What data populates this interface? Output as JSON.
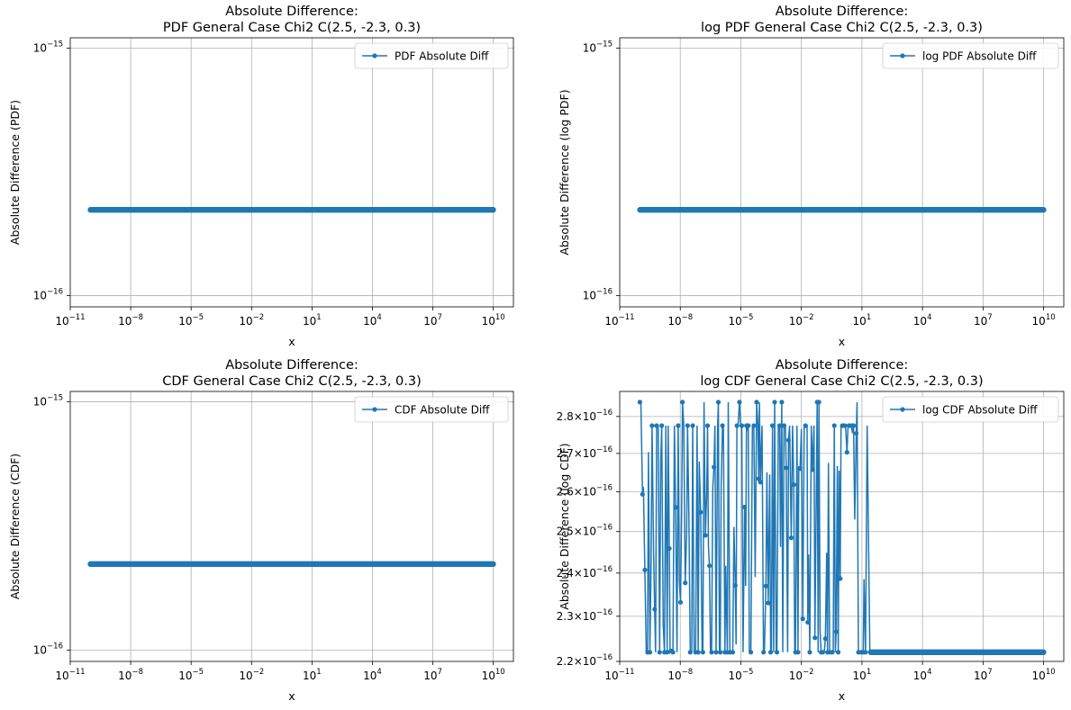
{
  "chart_data": [
    {
      "type": "line",
      "title": "Absolute Difference:\nPDF General Case Chi2 C(2.5, -2.3, 0.3)",
      "xlabel": "x",
      "ylabel": "Absolute Difference (PDF)",
      "xscale": "log",
      "yscale": "log",
      "xlim": [
        1e-11,
        100000000000.0
      ],
      "ylim": [
        9e-17,
        1.1e-15
      ],
      "xticks": [
        {
          "v": 1e-11,
          "base": "10",
          "exp": "−11"
        },
        {
          "v": 1e-08,
          "base": "10",
          "exp": "−8"
        },
        {
          "v": 1e-05,
          "base": "10",
          "exp": "−5"
        },
        {
          "v": 0.01,
          "base": "10",
          "exp": "−2"
        },
        {
          "v": 10.0,
          "base": "10",
          "exp": "1"
        },
        {
          "v": 10000.0,
          "base": "10",
          "exp": "4"
        },
        {
          "v": 10000000.0,
          "base": "10",
          "exp": "7"
        },
        {
          "v": 10000000000.0,
          "base": "10",
          "exp": "10"
        }
      ],
      "yticks": [
        {
          "v": 1e-16,
          "base": "10",
          "exp": "−16"
        },
        {
          "v": 1e-15,
          "base": "10",
          "exp": "−15"
        }
      ],
      "grid": true,
      "legend": "upper right",
      "color": "#1f77b4",
      "series": [
        {
          "name": "PDF Absolute Diff",
          "x_range": [
            1e-10,
            10000000000.0
          ],
          "y": 2.22e-16,
          "pattern": "constant"
        }
      ]
    },
    {
      "type": "line",
      "title": "Absolute Difference:\nlog PDF General Case Chi2 C(2.5, -2.3, 0.3)",
      "xlabel": "x",
      "ylabel": "Absolute Difference (log PDF)",
      "xscale": "log",
      "yscale": "log",
      "xlim": [
        1e-11,
        100000000000.0
      ],
      "ylim": [
        9e-17,
        1.1e-15
      ],
      "xticks": [
        {
          "v": 1e-11,
          "base": "10",
          "exp": "−11"
        },
        {
          "v": 1e-08,
          "base": "10",
          "exp": "−8"
        },
        {
          "v": 1e-05,
          "base": "10",
          "exp": "−5"
        },
        {
          "v": 0.01,
          "base": "10",
          "exp": "−2"
        },
        {
          "v": 10.0,
          "base": "10",
          "exp": "1"
        },
        {
          "v": 10000.0,
          "base": "10",
          "exp": "4"
        },
        {
          "v": 10000000.0,
          "base": "10",
          "exp": "7"
        },
        {
          "v": 10000000000.0,
          "base": "10",
          "exp": "10"
        }
      ],
      "yticks": [
        {
          "v": 1e-16,
          "base": "10",
          "exp": "−16"
        },
        {
          "v": 1e-15,
          "base": "10",
          "exp": "−15"
        }
      ],
      "grid": true,
      "legend": "upper right",
      "color": "#1f77b4",
      "series": [
        {
          "name": "log PDF Absolute Diff",
          "x_range": [
            1e-10,
            10000000000.0
          ],
          "y": 2.22e-16,
          "pattern": "constant"
        }
      ]
    },
    {
      "type": "line",
      "title": "Absolute Difference:\nCDF General Case Chi2 C(2.5, -2.3, 0.3)",
      "xlabel": "x",
      "ylabel": "Absolute Difference (CDF)",
      "xscale": "log",
      "yscale": "log",
      "xlim": [
        1e-11,
        100000000000.0
      ],
      "ylim": [
        9e-17,
        1.1e-15
      ],
      "xticks": [
        {
          "v": 1e-11,
          "base": "10",
          "exp": "−11"
        },
        {
          "v": 1e-08,
          "base": "10",
          "exp": "−8"
        },
        {
          "v": 1e-05,
          "base": "10",
          "exp": "−5"
        },
        {
          "v": 0.01,
          "base": "10",
          "exp": "−2"
        },
        {
          "v": 10.0,
          "base": "10",
          "exp": "1"
        },
        {
          "v": 10000.0,
          "base": "10",
          "exp": "4"
        },
        {
          "v": 10000000.0,
          "base": "10",
          "exp": "7"
        },
        {
          "v": 10000000000.0,
          "base": "10",
          "exp": "10"
        }
      ],
      "yticks": [
        {
          "v": 1e-16,
          "base": "10",
          "exp": "−16"
        },
        {
          "v": 1e-15,
          "base": "10",
          "exp": "−15"
        }
      ],
      "grid": true,
      "legend": "upper right",
      "color": "#1f77b4",
      "series": [
        {
          "name": "CDF Absolute Diff",
          "x_range": [
            1e-10,
            10000000000.0
          ],
          "y": 2.22e-16,
          "pattern": "constant"
        }
      ]
    },
    {
      "type": "line",
      "title": "Absolute Difference:\nlog CDF General Case Chi2 C(2.5, -2.3, 0.3)",
      "xlabel": "x",
      "ylabel": "Absolute Difference (log CDF)",
      "xscale": "log",
      "yscale": "log",
      "xlim": [
        1e-11,
        100000000000.0
      ],
      "ylim": [
        2.2e-16,
        2.87e-16
      ],
      "xticks": [
        {
          "v": 1e-11,
          "base": "10",
          "exp": "−11"
        },
        {
          "v": 1e-08,
          "base": "10",
          "exp": "−8"
        },
        {
          "v": 1e-05,
          "base": "10",
          "exp": "−5"
        },
        {
          "v": 0.01,
          "base": "10",
          "exp": "−2"
        },
        {
          "v": 10.0,
          "base": "10",
          "exp": "1"
        },
        {
          "v": 10000.0,
          "base": "10",
          "exp": "4"
        },
        {
          "v": 10000000.0,
          "base": "10",
          "exp": "7"
        },
        {
          "v": 10000000000.0,
          "base": "10",
          "exp": "10"
        }
      ],
      "yticks": [
        {
          "v": 2.2e-16,
          "base": "2.2×10",
          "exp": "−16"
        },
        {
          "v": 2.3e-16,
          "base": "2.3×10",
          "exp": "−16"
        },
        {
          "v": 2.4e-16,
          "base": "2.4×10",
          "exp": "−16"
        },
        {
          "v": 2.5e-16,
          "base": "2.5×10",
          "exp": "−16"
        },
        {
          "v": 2.6e-16,
          "base": "2.6×10",
          "exp": "−16"
        },
        {
          "v": 2.7e-16,
          "base": "2.7×10",
          "exp": "−16"
        },
        {
          "v": 2.8e-16,
          "base": "2.8×10",
          "exp": "−16"
        }
      ],
      "grid": true,
      "legend": "upper right",
      "color": "#1f77b4",
      "series": [
        {
          "name": "log CDF Absolute Diff",
          "x_range": [
            1e-10,
            10000000000.0
          ],
          "pattern": "oscillating_then_constant",
          "oscillation_x_range": [
            1e-10,
            20
          ],
          "oscillation_levels": [
            2.22e-16,
            2.29e-16,
            2.36e-16,
            2.57e-16,
            2.775e-16,
            2.84e-16
          ],
          "y": 2.22e-16
        }
      ]
    }
  ]
}
